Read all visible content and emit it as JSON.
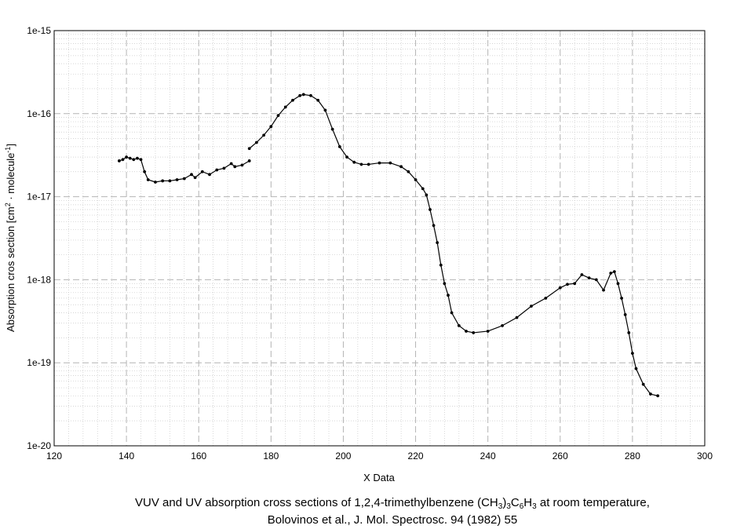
{
  "chart_data": {
    "type": "scatter",
    "x_label": "X Data",
    "y_label_parts": [
      "Absorption cros section [cm",
      "2",
      " · molecule",
      "-1",
      "]"
    ],
    "x_ticks": [
      "120",
      "140",
      "160",
      "180",
      "200",
      "220",
      "240",
      "260",
      "280",
      "300"
    ],
    "y_ticks": [
      "1e-20",
      "1e-19",
      "1e-18",
      "1e-17",
      "1e-16",
      "1e-15"
    ],
    "xlim": [
      120,
      300
    ],
    "ylim_log10": [
      -20,
      -15
    ],
    "y_scale": "log",
    "grid": true,
    "line_color": "#000000",
    "series": [
      {
        "points": [
          [
            138,
            2.7e-17
          ],
          [
            139,
            2.8e-17
          ],
          [
            140,
            3e-17
          ],
          [
            141,
            2.9e-17
          ],
          [
            142,
            2.8e-17
          ],
          [
            143,
            2.9e-17
          ],
          [
            144,
            2.8e-17
          ],
          [
            145,
            2e-17
          ],
          [
            146,
            1.6e-17
          ],
          [
            148,
            1.5e-17
          ],
          [
            150,
            1.55e-17
          ],
          [
            152,
            1.55e-17
          ],
          [
            154,
            1.6e-17
          ],
          [
            156,
            1.65e-17
          ],
          [
            158,
            1.85e-17
          ],
          [
            159,
            1.7e-17
          ],
          [
            161,
            2e-17
          ],
          [
            163,
            1.85e-17
          ],
          [
            165,
            2.1e-17
          ],
          [
            167,
            2.2e-17
          ],
          [
            169,
            2.5e-17
          ],
          [
            170,
            2.3e-17
          ],
          [
            172,
            2.4e-17
          ],
          [
            174,
            2.7e-17
          ]
        ]
      },
      {
        "points": [
          [
            174,
            3.8e-17
          ],
          [
            176,
            4.5e-17
          ],
          [
            178,
            5.5e-17
          ],
          [
            180,
            7e-17
          ],
          [
            182,
            9.5e-17
          ],
          [
            184,
            1.2e-16
          ],
          [
            186,
            1.45e-16
          ],
          [
            188,
            1.65e-16
          ],
          [
            189,
            1.7e-16
          ],
          [
            191,
            1.65e-16
          ],
          [
            193,
            1.45e-16
          ],
          [
            195,
            1.1e-16
          ],
          [
            197,
            6.5e-17
          ],
          [
            199,
            4e-17
          ],
          [
            201,
            3e-17
          ],
          [
            203,
            2.6e-17
          ],
          [
            205,
            2.45e-17
          ],
          [
            207,
            2.45e-17
          ],
          [
            210,
            2.55e-17
          ],
          [
            213,
            2.55e-17
          ],
          [
            216,
            2.3e-17
          ],
          [
            218,
            2e-17
          ],
          [
            220,
            1.6e-17
          ],
          [
            222,
            1.25e-17
          ],
          [
            223,
            1.05e-17
          ],
          [
            224,
            7e-18
          ],
          [
            225,
            4.5e-18
          ],
          [
            226,
            2.8e-18
          ],
          [
            227,
            1.5e-18
          ],
          [
            228,
            9e-19
          ],
          [
            229,
            6.5e-19
          ],
          [
            230,
            4e-19
          ],
          [
            232,
            2.8e-19
          ],
          [
            234,
            2.4e-19
          ],
          [
            236,
            2.3e-19
          ],
          [
            240,
            2.4e-19
          ],
          [
            244,
            2.8e-19
          ],
          [
            248,
            3.5e-19
          ],
          [
            252,
            4.8e-19
          ],
          [
            256,
            6e-19
          ],
          [
            260,
            8e-19
          ],
          [
            262,
            8.8e-19
          ],
          [
            264,
            9e-19
          ],
          [
            266,
            1.15e-18
          ],
          [
            268,
            1.05e-18
          ],
          [
            270,
            1e-18
          ],
          [
            272,
            7.5e-19
          ],
          [
            274,
            1.2e-18
          ],
          [
            275,
            1.25e-18
          ],
          [
            276,
            9e-19
          ],
          [
            277,
            6e-19
          ],
          [
            278,
            3.8e-19
          ],
          [
            279,
            2.3e-19
          ],
          [
            280,
            1.3e-19
          ],
          [
            281,
            8.5e-20
          ],
          [
            283,
            5.5e-20
          ],
          [
            285,
            4.2e-20
          ],
          [
            287,
            4e-20
          ]
        ]
      }
    ]
  },
  "caption": {
    "line1_parts": [
      "VUV and UV absorption cross sections of 1,2,4-trimethylbenzene (CH",
      "3",
      ")",
      "3",
      "C",
      "6",
      "H",
      "3",
      " at room temperature,"
    ],
    "line2": "Bolovinos et al., J. Mol. Spectrosc. 94 (1982) 55"
  }
}
